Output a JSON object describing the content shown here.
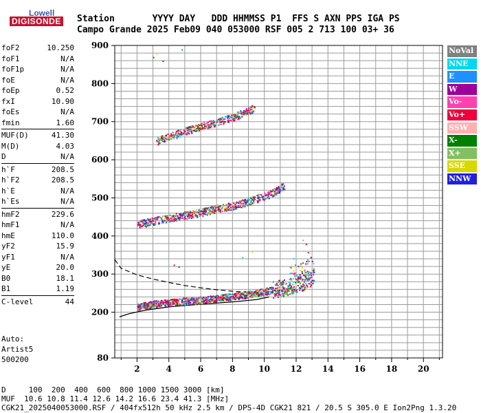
{
  "logo": {
    "top_text": "Lowell",
    "main_text": "DIGISONDE"
  },
  "header": {
    "line1": "Station       YYYY DAY   DDD HHMMSS P1  FFS S AXN PPS IGA PS",
    "line2": "Campo Grande 2025 Feb09 040 053000 RSF 005 2 713 100 03+ 36"
  },
  "params": [
    [
      {
        "k": "foF2",
        "v": "10.250"
      },
      {
        "k": "foF1",
        "v": "N/A"
      },
      {
        "k": "foF1p",
        "v": "N/A"
      },
      {
        "k": "foE",
        "v": "N/A"
      },
      {
        "k": "foEp",
        "v": "0.52"
      },
      {
        "k": "fxI",
        "v": "10.90"
      },
      {
        "k": "foEs",
        "v": "N/A"
      },
      {
        "k": "fmin",
        "v": "1.60"
      }
    ],
    [
      {
        "k": "MUF(D)",
        "v": "41.30"
      },
      {
        "k": "M(D)",
        "v": "4.03"
      },
      {
        "k": "D",
        "v": "N/A"
      }
    ],
    [
      {
        "k": "h`F",
        "v": "208.5"
      },
      {
        "k": "h`F2",
        "v": "208.5"
      },
      {
        "k": "h`E",
        "v": "N/A"
      },
      {
        "k": "h`Es",
        "v": "N/A"
      }
    ],
    [
      {
        "k": "hmF2",
        "v": "229.6"
      },
      {
        "k": "hmF1",
        "v": "N/A"
      },
      {
        "k": "hmE",
        "v": "110.0"
      },
      {
        "k": "yF2",
        "v": "15.9"
      },
      {
        "k": "yF1",
        "v": "N/A"
      },
      {
        "k": "yE",
        "v": "20.0"
      },
      {
        "k": "B0",
        "v": "18.1"
      },
      {
        "k": "B1",
        "v": "1.19"
      }
    ],
    [
      {
        "k": "C-level",
        "v": "44"
      }
    ]
  ],
  "auto": {
    "line1": "Auto:",
    "line2": "Artist5",
    "line3": "500200"
  },
  "legend": [
    {
      "label": "NoVal",
      "color": "#808080"
    },
    {
      "label": "NNE",
      "color": "#00d8f0"
    },
    {
      "label": "E",
      "color": "#1e90ff"
    },
    {
      "label": "W",
      "color": "#a0009a"
    },
    {
      "label": "Vo-",
      "color": "#ff40b0"
    },
    {
      "label": "Vo+",
      "color": "#f0003c"
    },
    {
      "label": "SSW",
      "color": "#ffb0b0"
    },
    {
      "label": "X-",
      "color": "#008000"
    },
    {
      "label": "X+",
      "color": "#80c060"
    },
    {
      "label": "SSE",
      "color": "#d8d800"
    },
    {
      "label": "NNW",
      "color": "#2020e0"
    }
  ],
  "bottom": {
    "line1": "D     100  200  400  600  800 1000 1500 3000 [km]",
    "line2": "MUF  10.6 10.8 11.4 12.6 14.2 16.6 23.4 41.3 [MHz]",
    "line3": "CGK21_2025040053000.RSF / 404fx512h 50 kHz 2.5 km / DPS-4D CGK21 821 / 20.5 S 305.0 E Ion2Png 1.3.20"
  },
  "chart_data": {
    "type": "scatter",
    "xlim": [
      0.6,
      21.2
    ],
    "ylim": [
      80,
      900
    ],
    "xticks": [
      2,
      4,
      6,
      8,
      10,
      12,
      14,
      16,
      18,
      20
    ],
    "yticks": [
      80,
      200,
      300,
      400,
      500,
      600,
      700,
      800,
      900
    ],
    "grid": true,
    "traces": [
      {
        "name": "F2 trace",
        "points": [
          [
            2.0,
            215
          ],
          [
            3.0,
            222
          ],
          [
            4.0,
            226
          ],
          [
            5.0,
            230
          ],
          [
            6.0,
            233
          ],
          [
            7.0,
            237
          ],
          [
            8.0,
            242
          ],
          [
            9.0,
            248
          ],
          [
            10.0,
            255
          ],
          [
            10.8,
            262
          ],
          [
            11.5,
            268
          ],
          [
            12.2,
            276
          ],
          [
            12.8,
            288
          ],
          [
            13.1,
            300
          ]
        ]
      },
      {
        "name": "2nd hop",
        "points": [
          [
            2.0,
            430
          ],
          [
            3.0,
            440
          ],
          [
            4.0,
            448
          ],
          [
            5.0,
            455
          ],
          [
            6.0,
            463
          ],
          [
            7.0,
            472
          ],
          [
            8.0,
            480
          ],
          [
            9.0,
            492
          ],
          [
            10.0,
            505
          ],
          [
            10.8,
            520
          ],
          [
            11.3,
            535
          ]
        ]
      },
      {
        "name": "3rd hop",
        "points": [
          [
            3.2,
            650
          ],
          [
            4.0,
            662
          ],
          [
            5.0,
            675
          ],
          [
            6.0,
            688
          ],
          [
            7.0,
            700
          ],
          [
            8.0,
            712
          ],
          [
            8.8,
            725
          ],
          [
            9.4,
            738
          ]
        ]
      }
    ],
    "profile_solid": [
      [
        0.9,
        188
      ],
      [
        1.5,
        196
      ],
      [
        2.5,
        205
      ],
      [
        4.0,
        214
      ],
      [
        6.0,
        221
      ],
      [
        8.0,
        227
      ],
      [
        9.5,
        233
      ],
      [
        10.3,
        240
      ]
    ],
    "profile_dashed": [
      [
        0.6,
        338
      ],
      [
        1.0,
        315
      ],
      [
        2.0,
        298
      ],
      [
        3.0,
        287
      ],
      [
        4.0,
        278
      ],
      [
        5.0,
        270
      ],
      [
        6.0,
        264
      ],
      [
        7.0,
        259
      ],
      [
        8.0,
        255
      ],
      [
        9.0,
        252
      ],
      [
        10.0,
        250
      ],
      [
        10.25,
        250
      ]
    ]
  }
}
